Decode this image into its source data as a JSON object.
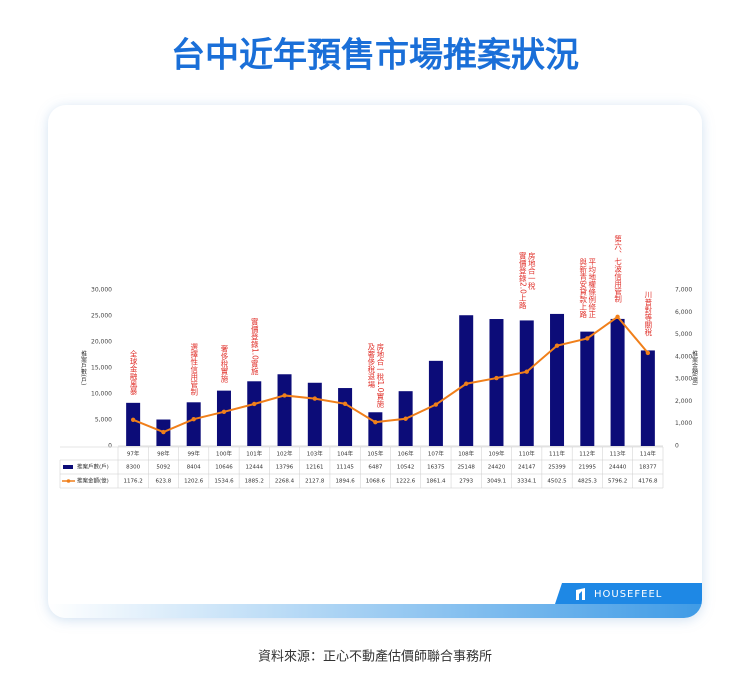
{
  "header": {
    "title": "台中近年預售市場推案狀況"
  },
  "chart_data": {
    "type": "bar-line",
    "y_label": "推案戶數(戶)",
    "y2_label": "推案金額(億)",
    "categories": [
      "97年",
      "98年",
      "99年",
      "100年",
      "101年",
      "102年",
      "103年",
      "104年",
      "105年",
      "106年",
      "107年",
      "108年",
      "109年",
      "110年",
      "111年",
      "112年",
      "113年",
      "114年"
    ],
    "series": [
      {
        "name": "推案戶數(戶)",
        "type": "bar",
        "color": "#0c0c78",
        "values": [
          8300,
          5092,
          8404,
          10646,
          12444,
          13796,
          12161,
          11145,
          6487,
          10542,
          16375,
          25148,
          24420,
          24147,
          25399,
          21995,
          24440,
          18377
        ]
      },
      {
        "name": "推案金額(億)",
        "type": "line",
        "axis": "y2",
        "color": "#f07f1a",
        "values": [
          1176.2,
          623.8,
          1202.6,
          1534.6,
          1885.2,
          2268.4,
          2127.8,
          1894.6,
          1068.6,
          1222.6,
          1861.4,
          2793,
          3049.1,
          3334.1,
          4502.5,
          4825.3,
          5796.2,
          4176.8
        ]
      }
    ],
    "ylim": [
      0,
      30000
    ],
    "yticks": [
      0,
      {
        "value": 5000,
        "label": "5,000"
      },
      {
        "value": 10000,
        "label": "10,000"
      },
      {
        "value": 15000,
        "label": "15,000"
      },
      {
        "value": 20000,
        "label": "20,000"
      },
      {
        "value": 25000,
        "label": "25,000"
      },
      {
        "value": 30000,
        "label": "30,000"
      }
    ],
    "y2lim": [
      0,
      7000
    ],
    "y2ticks": [
      0,
      {
        "value": 1000,
        "label": "1,000"
      },
      {
        "value": 2000,
        "label": "2,000"
      },
      {
        "value": 3000,
        "label": "3,000"
      },
      {
        "value": 4000,
        "label": "4,000"
      },
      {
        "value": 5000,
        "label": "5,000"
      },
      {
        "value": 6000,
        "label": "6,000"
      },
      {
        "value": 7000,
        "label": "7,000"
      }
    ],
    "grid": false,
    "annotation_color": "#e0302a",
    "annotations": [
      [
        "全球金融風暴"
      ],
      null,
      [
        "選擇性信用管制"
      ],
      [
        "奢侈稅實施"
      ],
      [
        "實價登錄1.0實施"
      ],
      null,
      null,
      null,
      [
        "房地合一稅1.0實施",
        "及奢侈稅退場"
      ],
      null,
      null,
      null,
      null,
      [
        "房地合一稅",
        "實價登錄2.0上路"
      ],
      null,
      [
        "平均地權條例修正",
        "與新青安貸款上路"
      ],
      [
        "第六、七波信用管制"
      ],
      [
        "川普對等關稅"
      ]
    ]
  },
  "brand": "HOUSEFEEL",
  "footer": {
    "source": "資料來源：正心不動產估價師聯合事務所"
  }
}
